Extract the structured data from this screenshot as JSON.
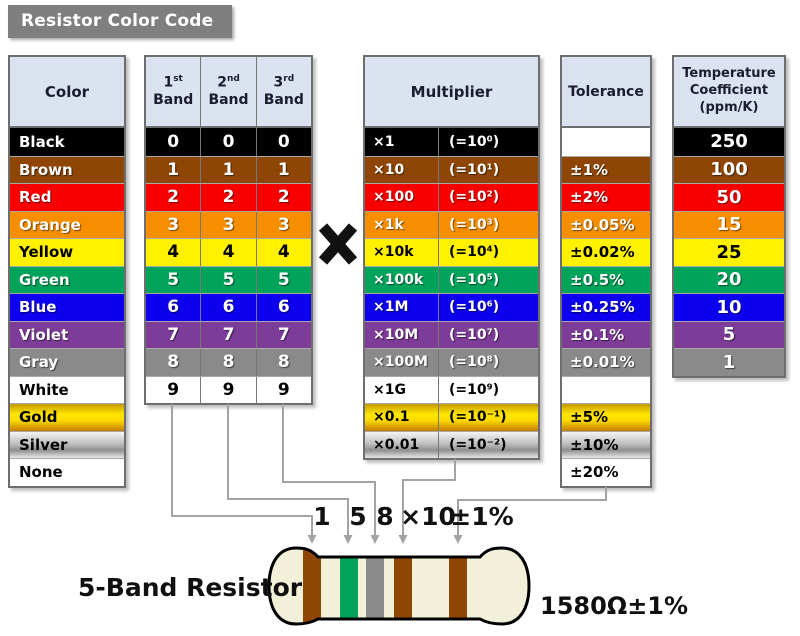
{
  "title": "Resistor Color Code",
  "headers": {
    "color": "Color",
    "bands": [
      {
        "n": "1",
        "suffix": "st",
        "word": "Band"
      },
      {
        "n": "2",
        "suffix": "nd",
        "word": "Band"
      },
      {
        "n": "3",
        "suffix": "rd",
        "word": "Band"
      }
    ],
    "multiplier": "Multiplier",
    "tolerance": "Tolerance",
    "tempco": "Temperature\nCoefficient\n(ppm/K)"
  },
  "rows": [
    {
      "name": "Black",
      "bg": "#000000",
      "fg": "#ffffff",
      "digit": "0",
      "mult": "×1",
      "pow": "(=10⁰)",
      "tol": "",
      "tol_bg": "#ffffff",
      "tempco": "250"
    },
    {
      "name": "Brown",
      "bg": "#8f4605",
      "fg": "#ffffff",
      "digit": "1",
      "mult": "×10",
      "pow": "(=10¹)",
      "tol": "±1%",
      "tempco": "100"
    },
    {
      "name": "Red",
      "bg": "#f80000",
      "fg": "#ffffff",
      "digit": "2",
      "mult": "×100",
      "pow": "(=10²)",
      "tol": "±2%",
      "tempco": "50"
    },
    {
      "name": "Orange",
      "bg": "#f78e00",
      "fg": "#ffffff",
      "digit": "3",
      "mult": "×1k",
      "pow": "(=10³)",
      "tol": "±0.05%",
      "tempco": "15"
    },
    {
      "name": "Yellow",
      "bg": "#fff100",
      "fg": "#000000",
      "digit": "4",
      "mult": "×10k",
      "pow": "(=10⁴)",
      "tol": "±0.02%",
      "tempco": "25"
    },
    {
      "name": "Green",
      "bg": "#00a35a",
      "fg": "#ffffff",
      "digit": "5",
      "mult": "×100k",
      "pow": "(=10⁵)",
      "tol": "±0.5%",
      "tempco": "20"
    },
    {
      "name": "Blue",
      "bg": "#0d00ee",
      "fg": "#ffffff",
      "digit": "6",
      "mult": "×1M",
      "pow": "(=10⁶)",
      "tol": "±0.25%",
      "tempco": "10"
    },
    {
      "name": "Violet",
      "bg": "#7d3c97",
      "fg": "#ffffff",
      "digit": "7",
      "mult": "×10M",
      "pow": "(=10⁷)",
      "tol": "±0.1%",
      "tempco": "5"
    },
    {
      "name": "Gray",
      "bg": "#8a8a8a",
      "fg": "#ffffff",
      "digit": "8",
      "mult": "×100M",
      "pow": "(=10⁸)",
      "tol": "±0.01%",
      "tempco": "1"
    },
    {
      "name": "White",
      "bg": "#ffffff",
      "fg": "#000000",
      "digit": "9",
      "mult": "×1G",
      "pow": "(=10⁹)",
      "tol": ""
    },
    {
      "name": "Gold",
      "bg": "gold",
      "fg": "#000000",
      "mult": "×0.1",
      "pow": "(=10⁻¹)",
      "tol": "±5%"
    },
    {
      "name": "Silver",
      "bg": "silver",
      "fg": "#000000",
      "mult": "×0.01",
      "pow": "(=10⁻²)",
      "tol": "±10%"
    },
    {
      "name": "None",
      "bg": "#ffffff",
      "fg": "#000000",
      "tol": "±20%"
    }
  ],
  "multiply_symbol": "×",
  "resistor": {
    "label": "5-Band Resistor",
    "value": "1580Ω±1%",
    "band_labels": [
      "1",
      "5",
      "8",
      "×10",
      "±1%"
    ],
    "band_colors": [
      "#8f4605",
      "#00a35a",
      "#8a8a8a",
      "#8f4605",
      "#8f4605"
    ],
    "body_color": "#f3f0da"
  },
  "chart_data": {
    "type": "table",
    "title": "Resistor Color Code",
    "columns": [
      "Color",
      "1st Band",
      "2nd Band",
      "3rd Band",
      "Multiplier",
      "Tolerance",
      "Temperature Coefficient (ppm/K)"
    ],
    "cells": [
      [
        "Black",
        "0",
        "0",
        "0",
        "×1 (=10⁰)",
        "",
        "250"
      ],
      [
        "Brown",
        "1",
        "1",
        "1",
        "×10 (=10¹)",
        "±1%",
        "100"
      ],
      [
        "Red",
        "2",
        "2",
        "2",
        "×100 (=10²)",
        "±2%",
        "50"
      ],
      [
        "Orange",
        "3",
        "3",
        "3",
        "×1k (=10³)",
        "±0.05%",
        "15"
      ],
      [
        "Yellow",
        "4",
        "4",
        "4",
        "×10k (=10⁴)",
        "±0.02%",
        "25"
      ],
      [
        "Green",
        "5",
        "5",
        "5",
        "×100k (=10⁵)",
        "±0.5%",
        "20"
      ],
      [
        "Blue",
        "6",
        "6",
        "6",
        "×1M (=10⁶)",
        "±0.25%",
        "10"
      ],
      [
        "Violet",
        "7",
        "7",
        "7",
        "×10M (=10⁷)",
        "±0.1%",
        "5"
      ],
      [
        "Gray",
        "8",
        "8",
        "8",
        "×100M (=10⁸)",
        "±0.01%",
        "1"
      ],
      [
        "White",
        "9",
        "9",
        "9",
        "×1G (=10⁹)",
        "",
        ""
      ],
      [
        "Gold",
        "",
        "",
        "",
        "×0.1 (=10⁻¹)",
        "±5%",
        ""
      ],
      [
        "Silver",
        "",
        "",
        "",
        "×0.01 (=10⁻²)",
        "±10%",
        ""
      ],
      [
        "None",
        "",
        "",
        "",
        "",
        "±20%",
        ""
      ]
    ],
    "example": {
      "label": "5-Band Resistor",
      "bands": [
        "1",
        "5",
        "8",
        "×10",
        "±1%"
      ],
      "result": "1580Ω±1%"
    }
  }
}
